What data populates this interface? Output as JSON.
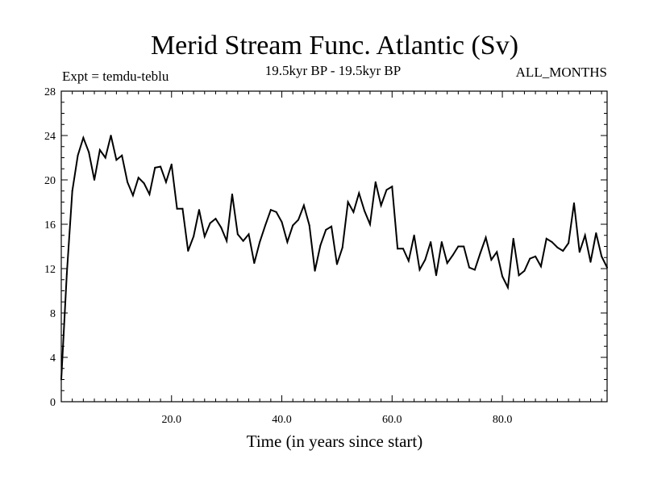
{
  "chart_data": {
    "type": "line",
    "title": "Merid Stream Func. Atlantic (Sv)",
    "subtitle_left": "Expt = temdu-teblu",
    "subtitle_center": "19.5kyr BP - 19.5kyr BP",
    "subtitle_right": "ALL_MONTHS",
    "xlabel": "Time (in years since start)",
    "ylabel": "",
    "xlim": [
      0,
      99
    ],
    "ylim": [
      0,
      28
    ],
    "x_ticks": [
      20,
      40,
      60,
      80
    ],
    "x_tick_labels": [
      "20.0",
      "40.0",
      "60.0",
      "80.0"
    ],
    "y_ticks": [
      0,
      4,
      8,
      12,
      16,
      20,
      24,
      28
    ],
    "y_tick_labels": [
      "0",
      "4",
      "8",
      "12",
      "16",
      "20",
      "24",
      "28"
    ],
    "series": [
      {
        "name": "Merid Stream Func. Atlantic",
        "x": [
          0,
          1,
          2,
          3,
          4,
          5,
          6,
          7,
          8,
          9,
          10,
          11,
          12,
          13,
          14,
          15,
          16,
          17,
          18,
          19,
          20,
          21,
          22,
          23,
          24,
          25,
          26,
          27,
          28,
          29,
          30,
          31,
          32,
          33,
          34,
          35,
          36,
          37,
          38,
          39,
          40,
          41,
          42,
          43,
          44,
          45,
          46,
          47,
          48,
          49,
          50,
          51,
          52,
          53,
          54,
          55,
          56,
          57,
          58,
          59,
          60,
          61,
          62,
          63,
          64,
          65,
          66,
          67,
          68,
          69,
          70,
          71,
          72,
          73,
          74,
          75,
          76,
          77,
          78,
          79,
          80,
          81,
          82,
          83,
          84,
          85,
          86,
          87,
          88,
          89,
          90,
          91,
          92,
          93,
          94,
          95,
          96,
          97,
          98,
          99
        ],
        "values": [
          2.0,
          11.5,
          19.0,
          22.2,
          23.8,
          22.5,
          20.0,
          22.7,
          22.0,
          24.0,
          21.8,
          22.2,
          19.8,
          18.6,
          20.2,
          19.7,
          18.7,
          21.1,
          21.2,
          19.8,
          21.4,
          17.4,
          17.4,
          13.6,
          14.9,
          17.3,
          14.9,
          16.1,
          16.5,
          15.7,
          14.5,
          18.7,
          15.1,
          14.5,
          15.1,
          12.5,
          14.4,
          15.9,
          17.3,
          17.1,
          16.2,
          14.4,
          15.9,
          16.4,
          17.7,
          15.9,
          11.8,
          14.1,
          15.5,
          15.8,
          12.4,
          13.9,
          18.0,
          17.1,
          18.8,
          17.2,
          16.0,
          19.8,
          17.7,
          19.1,
          19.4,
          13.8,
          13.8,
          12.7,
          15.0,
          11.9,
          12.8,
          14.4,
          11.4,
          14.4,
          12.5,
          13.2,
          14.0,
          14.0,
          12.1,
          11.9,
          13.4,
          14.8,
          12.8,
          13.5,
          11.3,
          10.3,
          14.7,
          11.4,
          11.8,
          12.9,
          13.1,
          12.2,
          14.7,
          14.4,
          13.9,
          13.6,
          14.3,
          17.9,
          13.5,
          15.0,
          12.6,
          15.2,
          13.1,
          12.1
        ]
      }
    ],
    "colors": {
      "line": "#000000",
      "axes": "#000000",
      "background": "#ffffff"
    }
  }
}
